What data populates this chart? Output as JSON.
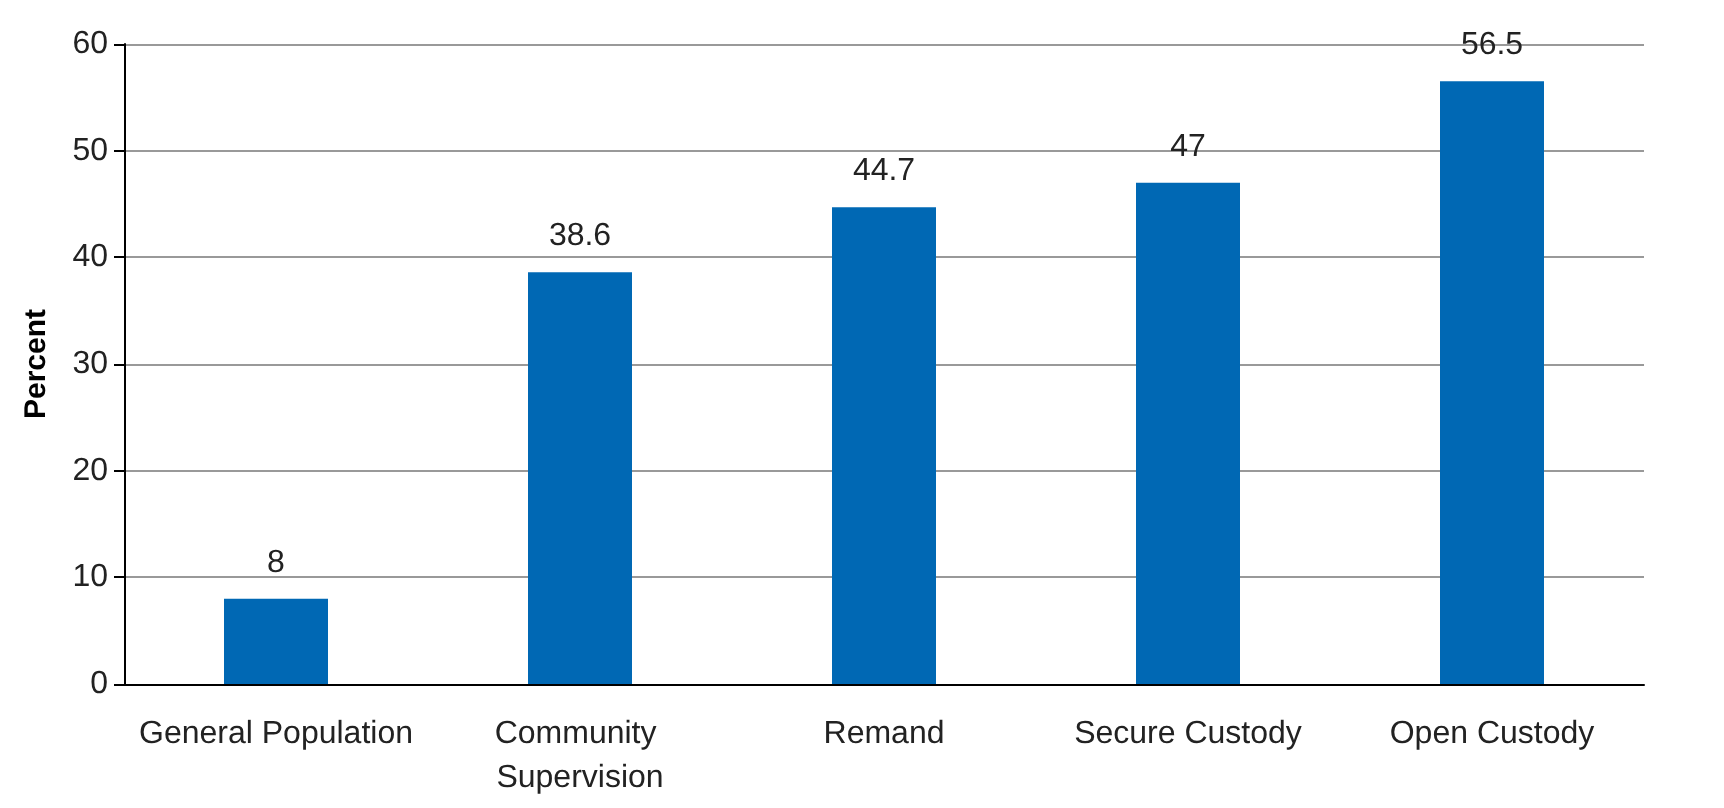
{
  "chart_data": {
    "type": "bar",
    "ylabel": "Percent",
    "categories": [
      "General Population",
      "Community Supervision",
      "Remand",
      "Secure Custody",
      "Open Custody"
    ],
    "values": [
      8,
      38.6,
      44.7,
      47,
      56.5
    ],
    "color": "#0068b4",
    "ylim": [
      0,
      60
    ],
    "yticks": [
      0,
      10,
      20,
      30,
      40,
      50,
      60
    ],
    "grid": "y",
    "data_labels": true
  }
}
